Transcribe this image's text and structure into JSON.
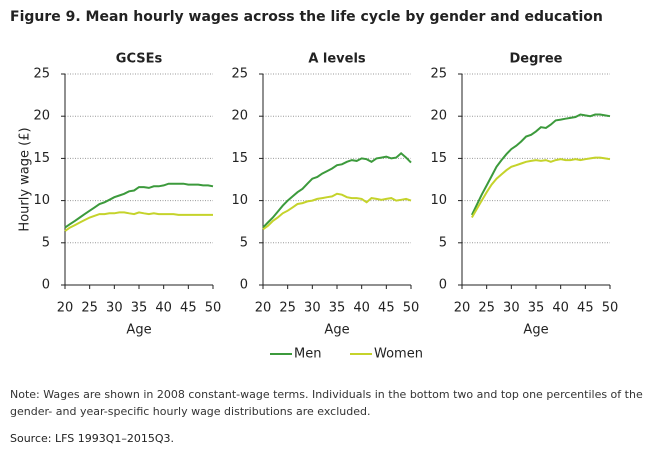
{
  "title": "Figure 9. Mean hourly wages across the life cycle by gender and education",
  "note": "Note: Wages are shown in 2008 constant-wage terms. Individuals in the bottom two and top one percentiles of the gender- and year-specific hourly wage distributions are excluded.",
  "source": "Source: LFS 1993Q1–2015Q3.",
  "chart_data": [
    {
      "type": "line",
      "title": "GCSEs",
      "ylabel": "Hourly wage (£)",
      "xlabel": "Age",
      "x": [
        20,
        21,
        22,
        23,
        24,
        25,
        26,
        27,
        28,
        29,
        30,
        31,
        32,
        33,
        34,
        35,
        36,
        37,
        38,
        39,
        40,
        41,
        42,
        43,
        44,
        45,
        46,
        47,
        48,
        49,
        50
      ],
      "xlim": [
        20,
        50
      ],
      "xticks": [
        20,
        25,
        30,
        35,
        40,
        45,
        50
      ],
      "ylim": [
        0,
        25
      ],
      "yticks": [
        0,
        5,
        10,
        15,
        20,
        25
      ],
      "grid": true,
      "series": [
        {
          "name": "Men",
          "color": "#3c9a3c",
          "values": [
            6.8,
            7.2,
            7.6,
            8.0,
            8.4,
            8.8,
            9.2,
            9.6,
            9.8,
            10.1,
            10.4,
            10.6,
            10.8,
            11.1,
            11.2,
            11.6,
            11.6,
            11.5,
            11.7,
            11.7,
            11.8,
            12.0,
            12.0,
            12.0,
            12.0,
            11.9,
            11.9,
            11.9,
            11.8,
            11.8,
            11.7
          ]
        },
        {
          "name": "Women",
          "color": "#c5d32b",
          "values": [
            6.4,
            6.8,
            7.1,
            7.4,
            7.7,
            8.0,
            8.2,
            8.4,
            8.4,
            8.5,
            8.5,
            8.6,
            8.6,
            8.5,
            8.4,
            8.6,
            8.5,
            8.4,
            8.5,
            8.4,
            8.4,
            8.4,
            8.4,
            8.3,
            8.3,
            8.3,
            8.3,
            8.3,
            8.3,
            8.3,
            8.3
          ]
        }
      ]
    },
    {
      "type": "line",
      "title": "A levels",
      "xlabel": "Age",
      "x": [
        20,
        21,
        22,
        23,
        24,
        25,
        26,
        27,
        28,
        29,
        30,
        31,
        32,
        33,
        34,
        35,
        36,
        37,
        38,
        39,
        40,
        41,
        42,
        43,
        44,
        45,
        46,
        47,
        48,
        49,
        50
      ],
      "xlim": [
        20,
        50
      ],
      "xticks": [
        20,
        25,
        30,
        35,
        40,
        45,
        50
      ],
      "ylim": [
        0,
        25
      ],
      "yticks": [
        0,
        5,
        10,
        15,
        20,
        25
      ],
      "grid": true,
      "series": [
        {
          "name": "Men",
          "color": "#3c9a3c",
          "values": [
            6.8,
            7.4,
            8.0,
            8.7,
            9.4,
            10.0,
            10.5,
            11.0,
            11.4,
            12.0,
            12.6,
            12.8,
            13.2,
            13.5,
            13.8,
            14.2,
            14.3,
            14.6,
            14.8,
            14.7,
            15.0,
            14.9,
            14.6,
            15.0,
            15.1,
            15.2,
            15.0,
            15.1,
            15.6,
            15.1,
            14.5
          ]
        },
        {
          "name": "Women",
          "color": "#c5d32b",
          "values": [
            6.6,
            7.0,
            7.6,
            8.0,
            8.5,
            8.8,
            9.2,
            9.6,
            9.7,
            9.9,
            10.0,
            10.2,
            10.3,
            10.4,
            10.5,
            10.8,
            10.7,
            10.4,
            10.3,
            10.3,
            10.2,
            9.8,
            10.3,
            10.2,
            10.1,
            10.2,
            10.3,
            10.0,
            10.1,
            10.2,
            10.0
          ]
        }
      ]
    },
    {
      "type": "line",
      "title": "Degree",
      "xlabel": "Age",
      "x": [
        20,
        21,
        22,
        23,
        24,
        25,
        26,
        27,
        28,
        29,
        30,
        31,
        32,
        33,
        34,
        35,
        36,
        37,
        38,
        39,
        40,
        41,
        42,
        43,
        44,
        45,
        46,
        47,
        48,
        49,
        50
      ],
      "xlim": [
        20,
        50
      ],
      "xticks": [
        20,
        25,
        30,
        35,
        40,
        45,
        50
      ],
      "ylim": [
        0,
        25
      ],
      "yticks": [
        0,
        5,
        10,
        15,
        20,
        25
      ],
      "grid": true,
      "series": [
        {
          "name": "Men",
          "color": "#3c9a3c",
          "values": [
            null,
            null,
            8.3,
            9.5,
            10.7,
            11.8,
            12.9,
            14.0,
            14.8,
            15.5,
            16.1,
            16.5,
            17.0,
            17.6,
            17.8,
            18.2,
            18.7,
            18.6,
            19.0,
            19.5,
            19.6,
            19.7,
            19.8,
            19.9,
            20.2,
            20.1,
            20.0,
            20.2,
            20.2,
            20.1,
            20.0
          ]
        },
        {
          "name": "Women",
          "color": "#c5d32b",
          "values": [
            null,
            null,
            8.0,
            9.0,
            10.0,
            11.0,
            11.9,
            12.6,
            13.1,
            13.6,
            14.0,
            14.2,
            14.4,
            14.6,
            14.7,
            14.8,
            14.7,
            14.8,
            14.6,
            14.8,
            14.9,
            14.8,
            14.8,
            14.9,
            14.8,
            14.9,
            15.0,
            15.1,
            15.1,
            15.0,
            14.9
          ]
        }
      ]
    }
  ]
}
